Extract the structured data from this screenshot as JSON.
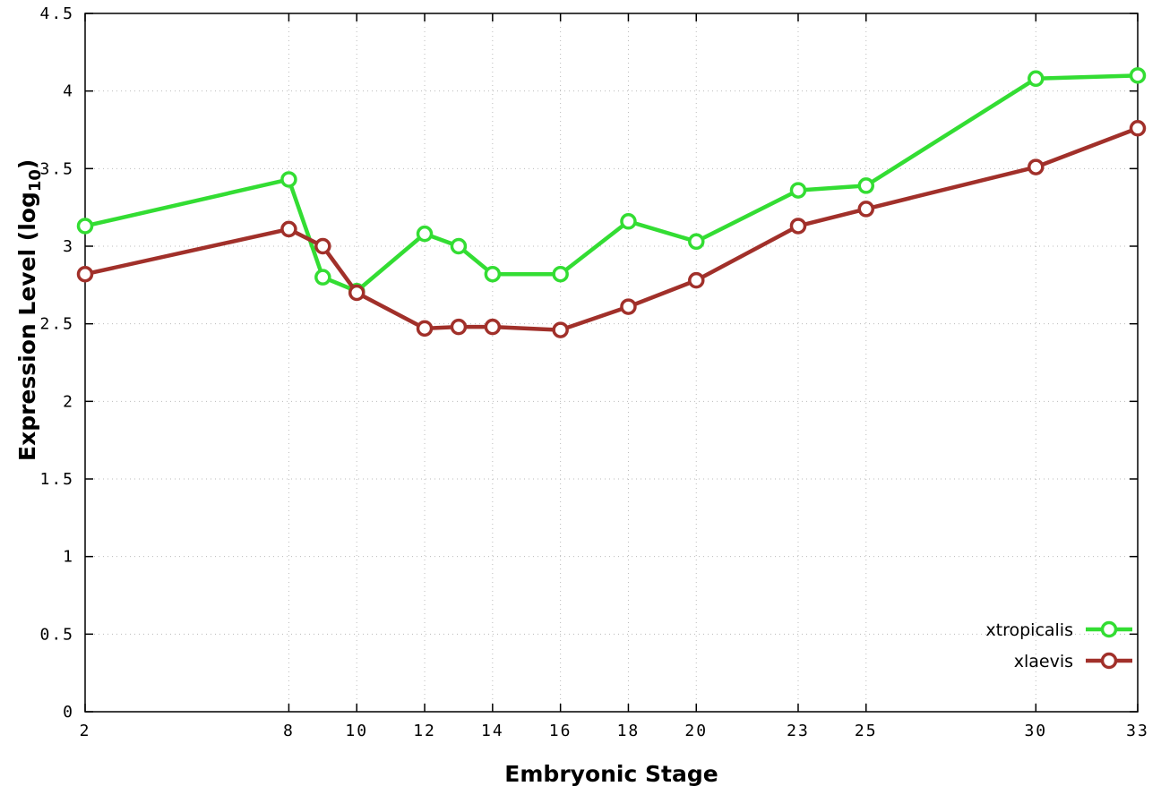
{
  "chart_data": {
    "type": "line",
    "title": "",
    "xlabel": "Embryonic Stage",
    "ylabel": "Expression Level (log10)",
    "ylabel_prefix": "Expression Level (log",
    "ylabel_sub": "10",
    "ylabel_suffix": ")",
    "x": [
      2,
      8,
      9,
      10,
      12,
      13,
      14,
      16,
      18,
      20,
      23,
      25,
      30,
      33
    ],
    "series": [
      {
        "name": "xtropicalis",
        "color": "#33dd33",
        "values": [
          3.13,
          3.43,
          2.8,
          2.71,
          3.08,
          3.0,
          2.82,
          2.82,
          3.16,
          3.03,
          3.36,
          3.39,
          4.08,
          4.1
        ]
      },
      {
        "name": "xlaevis",
        "color": "#a1302a",
        "values": [
          2.82,
          3.11,
          3.0,
          2.7,
          2.47,
          2.48,
          2.48,
          2.46,
          2.61,
          2.78,
          3.13,
          3.24,
          3.51,
          3.76
        ]
      }
    ],
    "xticks": [
      2,
      8,
      10,
      12,
      14,
      16,
      18,
      20,
      23,
      25,
      30,
      33
    ],
    "yticks": [
      0,
      0.5,
      1,
      1.5,
      2,
      2.5,
      3,
      3.5,
      4,
      4.5
    ],
    "xlim": [
      2,
      33
    ],
    "ylim": [
      0,
      4.5
    ],
    "grid": true,
    "legend_position": "inside-bottom-right",
    "colors": {
      "grid": "#bbbbbb",
      "axis": "#000000",
      "background": "#ffffff",
      "marker_fill": "#ffffff"
    }
  }
}
